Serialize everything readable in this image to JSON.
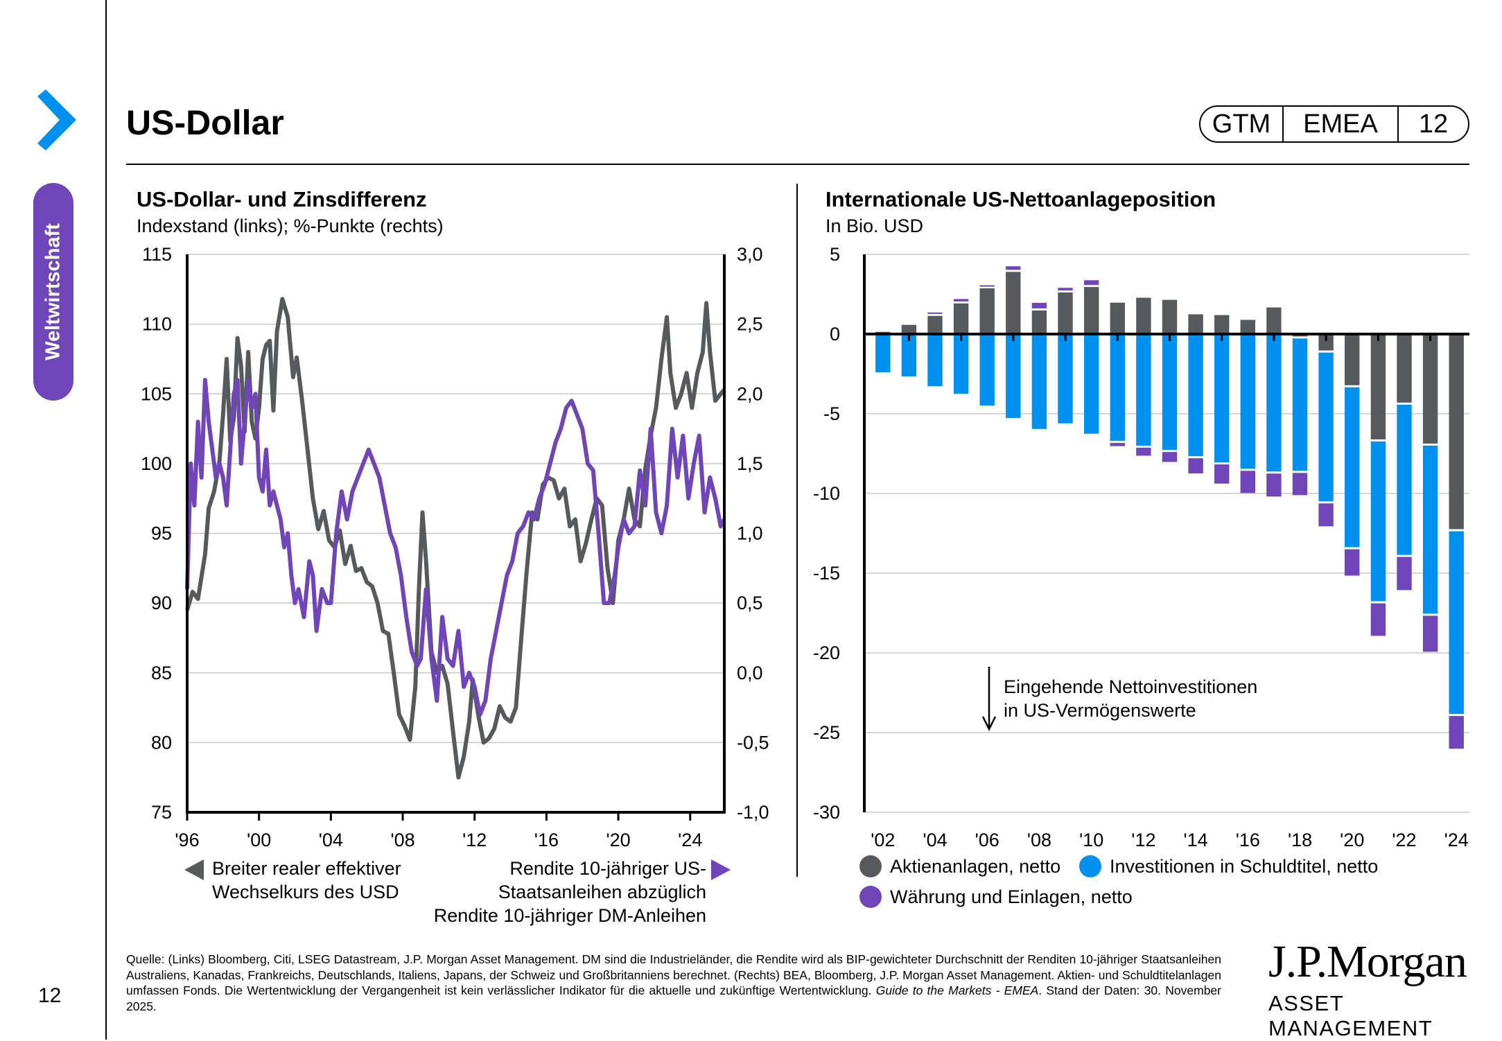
{
  "sidebar": {
    "section_label": "Weltwirtschaft",
    "page_number": "12",
    "chevron_color": "#0091f0",
    "badge_color": "#6f45b8"
  },
  "header": {
    "title": "US-Dollar",
    "badge": [
      "GTM",
      "EMEA",
      "12"
    ]
  },
  "colors": {
    "grey_series": "#575a5d",
    "purple_series": "#6f45b8",
    "blue_series": "#0091f0"
  },
  "chart_data": [
    {
      "type": "line",
      "title": "US-Dollar- und Zinsdifferenz",
      "subtitle": "Indexstand (links); %-Punkte (rechts)",
      "x_ticks": [
        "'96",
        "'00",
        "'04",
        "'08",
        "'12",
        "'16",
        "'20",
        "'24"
      ],
      "x_tick_years": [
        1996,
        2000,
        2004,
        2008,
        2012,
        2016,
        2020,
        2024
      ],
      "xlim": [
        1996,
        2025.9
      ],
      "y_left": {
        "ticks": [
          "115",
          "110",
          "105",
          "100",
          "95",
          "90",
          "85",
          "80",
          "75"
        ],
        "ylim": [
          75,
          115
        ]
      },
      "y_right": {
        "ticks": [
          "3,0",
          "2,5",
          "2,0",
          "1,5",
          "1,0",
          "0,5",
          "0,0",
          "-0,5",
          "-1,0"
        ],
        "ylim": [
          -1.0,
          3.0
        ]
      },
      "grid": true,
      "series": [
        {
          "name": "Breiter realer effektiver Wechselkurs des USD",
          "axis": "left",
          "legend_lines": [
            "Breiter realer effektiver",
            "Wechselkurs des USD"
          ],
          "x": [
            1996.0,
            1996.3,
            1996.6,
            1997.0,
            1997.2,
            1997.5,
            1997.8,
            1998.0,
            1998.2,
            1998.4,
            1998.6,
            1998.8,
            1999.0,
            1999.2,
            1999.4,
            1999.6,
            1999.8,
            2000.0,
            2000.2,
            2000.4,
            2000.6,
            2000.8,
            2001.0,
            2001.3,
            2001.6,
            2001.9,
            2002.1,
            2002.4,
            2002.7,
            2003.0,
            2003.3,
            2003.6,
            2003.9,
            2004.2,
            2004.5,
            2004.8,
            2005.1,
            2005.4,
            2005.7,
            2006.0,
            2006.3,
            2006.6,
            2006.9,
            2007.2,
            2007.5,
            2007.8,
            2008.1,
            2008.4,
            2008.7,
            2008.9,
            2009.1,
            2009.3,
            2009.6,
            2009.9,
            2010.2,
            2010.5,
            2010.8,
            2011.1,
            2011.4,
            2011.7,
            2011.9,
            2012.2,
            2012.5,
            2012.8,
            2013.1,
            2013.4,
            2013.7,
            2014.0,
            2014.3,
            2014.6,
            2014.9,
            2015.2,
            2015.5,
            2015.8,
            2016.1,
            2016.4,
            2016.7,
            2017.0,
            2017.3,
            2017.6,
            2017.9,
            2018.2,
            2018.5,
            2018.8,
            2019.1,
            2019.4,
            2019.7,
            2020.0,
            2020.3,
            2020.6,
            2020.9,
            2021.2,
            2021.5,
            2021.8,
            2022.1,
            2022.4,
            2022.7,
            2022.9,
            2023.2,
            2023.5,
            2023.8,
            2024.1,
            2024.4,
            2024.7,
            2024.9,
            2025.1,
            2025.4,
            2025.7,
            2025.9
          ],
          "y": [
            89.5,
            90.8,
            90.3,
            93.5,
            96.8,
            98.0,
            100.2,
            103.5,
            107.5,
            101.6,
            103.3,
            109.0,
            107.0,
            102.3,
            108.0,
            103.0,
            101.8,
            104.0,
            107.5,
            108.5,
            108.8,
            103.8,
            109.5,
            111.8,
            110.5,
            106.2,
            107.6,
            104.5,
            101.0,
            97.5,
            95.3,
            96.6,
            94.5,
            94.0,
            95.2,
            92.8,
            94.1,
            92.3,
            92.5,
            91.5,
            91.2,
            90.0,
            88.0,
            87.8,
            85.0,
            82.0,
            81.2,
            80.2,
            84.0,
            91.0,
            96.5,
            93.0,
            86.5,
            85.0,
            85.5,
            84.2,
            80.8,
            77.5,
            79.0,
            81.5,
            84.5,
            82.0,
            80.0,
            80.3,
            81.0,
            82.6,
            81.8,
            81.5,
            82.5,
            87.5,
            92.3,
            96.5,
            96.0,
            98.5,
            99.0,
            98.8,
            97.5,
            98.2,
            95.5,
            96.0,
            93.0,
            94.3,
            96.0,
            97.5,
            97.0,
            92.5,
            90.0,
            94.5,
            96.0,
            98.2,
            96.0,
            95.5,
            99.6,
            102.0,
            104.0,
            107.5,
            110.5,
            106.5,
            104.0,
            105.0,
            106.5,
            104.0,
            106.5,
            108.0,
            111.5,
            108.0,
            104.5,
            105.0,
            105.3
          ]
        },
        {
          "name": "Rendite 10-jähriger US-Staatsanleihen abzüglich Rendite 10-jähriger DM-Anleihen",
          "axis": "right",
          "legend_lines": [
            "Rendite 10-jähriger US-",
            "Staatsanleihen abzüglich",
            "Rendite 10-jähriger DM-Anleihen"
          ],
          "x": [
            1996.0,
            1996.2,
            1996.4,
            1996.6,
            1996.8,
            1997.0,
            1997.2,
            1997.4,
            1997.6,
            1997.8,
            1998.0,
            1998.2,
            1998.4,
            1998.6,
            1998.8,
            1999.0,
            1999.2,
            1999.4,
            1999.6,
            1999.8,
            2000.0,
            2000.2,
            2000.4,
            2000.6,
            2000.8,
            2001.0,
            2001.2,
            2001.4,
            2001.6,
            2001.8,
            2002.0,
            2002.2,
            2002.5,
            2002.8,
            2003.0,
            2003.2,
            2003.5,
            2003.8,
            2004.0,
            2004.3,
            2004.6,
            2004.9,
            2005.2,
            2005.5,
            2005.8,
            2006.1,
            2006.4,
            2006.7,
            2007.0,
            2007.3,
            2007.6,
            2007.9,
            2008.2,
            2008.5,
            2008.8,
            2009.0,
            2009.3,
            2009.6,
            2009.9,
            2010.2,
            2010.5,
            2010.8,
            2011.1,
            2011.4,
            2011.7,
            2012.0,
            2012.3,
            2012.6,
            2012.9,
            2013.2,
            2013.5,
            2013.8,
            2014.1,
            2014.4,
            2014.7,
            2015.0,
            2015.3,
            2015.6,
            2015.9,
            2016.2,
            2016.5,
            2016.8,
            2017.1,
            2017.4,
            2017.7,
            2018.0,
            2018.3,
            2018.6,
            2018.9,
            2019.2,
            2019.5,
            2019.8,
            2020.0,
            2020.3,
            2020.6,
            2020.9,
            2021.2,
            2021.5,
            2021.8,
            2022.1,
            2022.4,
            2022.7,
            2023.0,
            2023.3,
            2023.6,
            2023.9,
            2024.2,
            2024.5,
            2024.8,
            2025.1,
            2025.4,
            2025.7,
            2025.9
          ],
          "y": [
            0.6,
            1.5,
            1.2,
            1.8,
            1.4,
            2.1,
            1.8,
            1.6,
            1.4,
            1.5,
            1.4,
            1.2,
            1.6,
            2.0,
            2.1,
            1.5,
            1.8,
            2.1,
            1.9,
            2.0,
            1.4,
            1.3,
            1.6,
            1.2,
            1.3,
            1.2,
            1.1,
            0.9,
            1.0,
            0.7,
            0.5,
            0.6,
            0.4,
            0.8,
            0.7,
            0.3,
            0.6,
            0.5,
            0.5,
            1.0,
            1.3,
            1.1,
            1.3,
            1.4,
            1.5,
            1.6,
            1.5,
            1.4,
            1.2,
            1.0,
            0.9,
            0.7,
            0.4,
            0.15,
            0.05,
            0.1,
            0.6,
            0.1,
            -0.2,
            0.4,
            0.1,
            0.05,
            0.3,
            -0.1,
            0.0,
            -0.1,
            -0.3,
            -0.2,
            0.1,
            0.3,
            0.5,
            0.7,
            0.8,
            1.0,
            1.05,
            1.15,
            1.1,
            1.25,
            1.35,
            1.5,
            1.65,
            1.75,
            1.9,
            1.95,
            1.85,
            1.75,
            1.5,
            1.45,
            1.0,
            0.5,
            0.5,
            0.7,
            0.9,
            1.1,
            1.0,
            1.05,
            1.45,
            1.2,
            1.75,
            1.15,
            1.0,
            1.2,
            1.75,
            1.4,
            1.7,
            1.25,
            1.5,
            1.7,
            1.15,
            1.4,
            1.25,
            1.05,
            1.1
          ]
        }
      ]
    },
    {
      "type": "bar",
      "stacked": true,
      "title": "Internationale US-Nettoanlageposition",
      "subtitle": "In Bio. USD",
      "categories": [
        2002,
        2003,
        2004,
        2005,
        2006,
        2007,
        2008,
        2009,
        2010,
        2011,
        2012,
        2013,
        2014,
        2015,
        2016,
        2017,
        2018,
        2019,
        2020,
        2021,
        2022,
        2023,
        2024
      ],
      "x_ticks": [
        "'02",
        "'04",
        "'06",
        "'08",
        "'10",
        "'12",
        "'14",
        "'16",
        "'18",
        "'20",
        "'22",
        "'24"
      ],
      "y_ticks": [
        "5",
        "0",
        "-5",
        "-10",
        "-15",
        "-20",
        "-25",
        "-30"
      ],
      "ylim": [
        -30,
        5
      ],
      "grid": true,
      "legend_placement": "bottom",
      "series": [
        {
          "name": "Aktienanlagen, netto",
          "color_key": "grey_series",
          "values": [
            0.14,
            0.58,
            1.14,
            1.92,
            2.87,
            3.9,
            1.48,
            2.61,
            2.95,
            1.97,
            2.28,
            2.15,
            1.24,
            1.19,
            0.89,
            1.67,
            -0.15,
            -1.03,
            -3.21,
            -6.61,
            -4.3,
            -6.87,
            -12.24
          ]
        },
        {
          "name": "Investitionen in Schuldtitel, netto",
          "color_key": "blue_series",
          "values": [
            -2.4,
            -2.65,
            -3.27,
            -3.75,
            -4.48,
            -5.26,
            -5.95,
            -5.6,
            -6.25,
            -6.7,
            -7.0,
            -7.27,
            -7.66,
            -8.05,
            -8.45,
            -8.62,
            -8.3,
            -9.33,
            -10.03,
            -10.02,
            -9.42,
            -10.54,
            -11.46
          ]
        },
        {
          "name": "Währung und Einlagen, netto",
          "color_key": "purple_series",
          "values": [
            0.0,
            0.0,
            0.08,
            0.15,
            0.06,
            0.22,
            0.35,
            0.16,
            0.3,
            -0.2,
            -0.5,
            -0.62,
            -0.95,
            -1.2,
            -1.39,
            -1.44,
            -1.39,
            -1.44,
            -1.65,
            -2.04,
            -2.08,
            -2.26,
            -2.05
          ]
        }
      ],
      "annotation": {
        "arrow": "down",
        "lines": [
          "Eingehende Nettoinvestitionen",
          "in US-Vermögenswerte"
        ]
      }
    }
  ],
  "footer": {
    "source_text": "Quelle: (Links) Bloomberg, Citi, LSEG Datastream, J.P. Morgan Asset Management. DM sind die Industrieländer, die Rendite wird als BIP-gewichteter Durchschnitt der Renditen 10-jähriger Staatsanleihen Australiens, Kanadas, Frankreichs, Deutschlands, Italiens, Japans, der Schweiz und Großbritanniens berechnet. (Rechts) BEA, Bloomberg, J.P. Morgan Asset Management. Aktien- und Schuldtitelanlagen umfassen Fonds. Die Wertentwicklung der Vergangenheit ist kein verlässlicher Indikator für die aktuelle und zukünftige Wertentwicklung.",
    "guide_italic": "Guide to the Markets - EMEA",
    "date_text": ". Stand der Daten: 30. November 2025."
  },
  "logo": {
    "main": "J.P.Morgan",
    "sub": "ASSET MANAGEMENT"
  }
}
